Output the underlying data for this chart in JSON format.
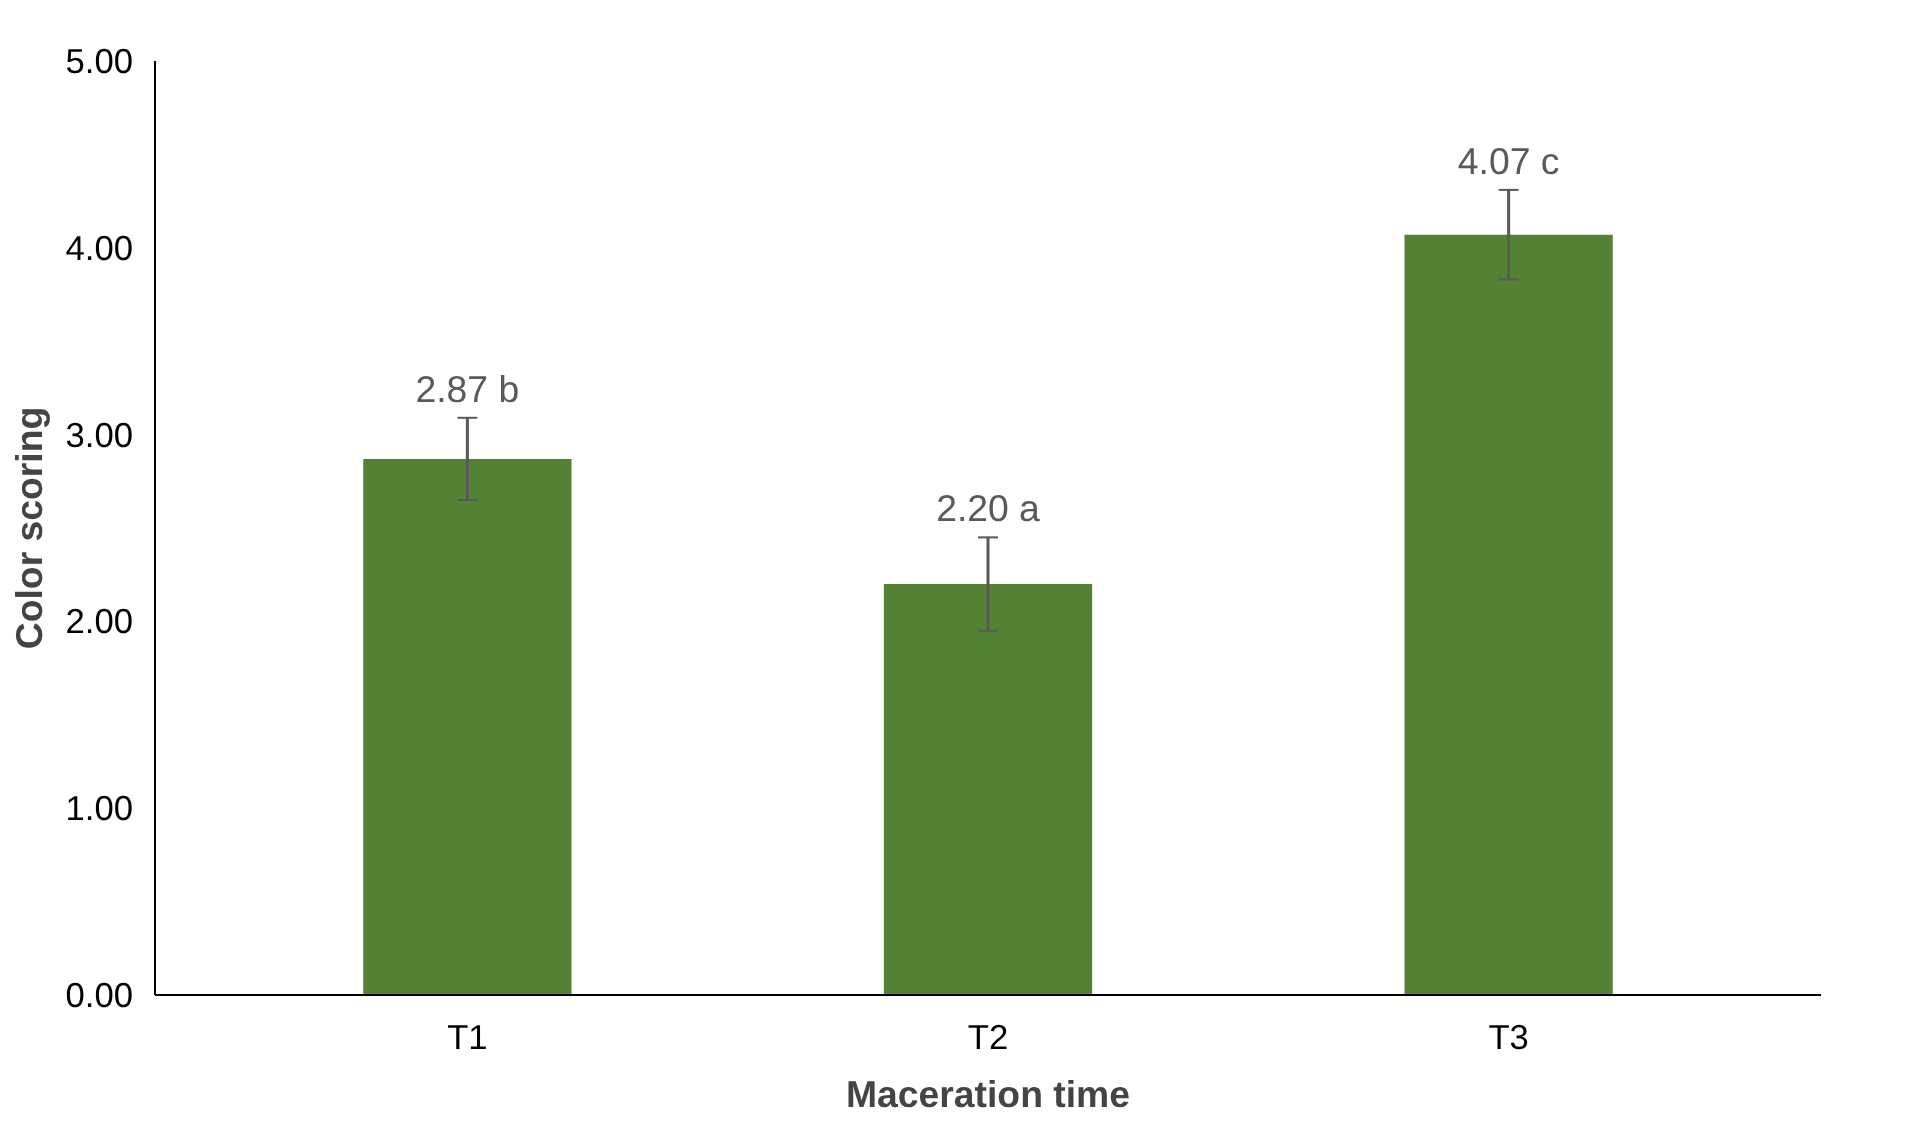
{
  "chart_data": {
    "type": "bar",
    "xlabel": "Maceration time",
    "ylabel": "Color scoring",
    "categories": [
      "T1",
      "T2",
      "T3"
    ],
    "values": [
      2.87,
      2.2,
      4.07
    ],
    "errors": [
      0.22,
      0.25,
      0.24
    ],
    "value_labels": [
      "2.87 b",
      "2.20 a",
      "4.07 c"
    ],
    "color": "#548235",
    "ylim": [
      0,
      5
    ],
    "yticks": [
      {
        "value": 0,
        "label": "0.00"
      },
      {
        "value": 1,
        "label": "1.00"
      },
      {
        "value": 2,
        "label": "2.00"
      },
      {
        "value": 3,
        "label": "3.00"
      },
      {
        "value": 4,
        "label": "4.00"
      },
      {
        "value": 5,
        "label": "5.00"
      }
    ],
    "grid": false
  }
}
